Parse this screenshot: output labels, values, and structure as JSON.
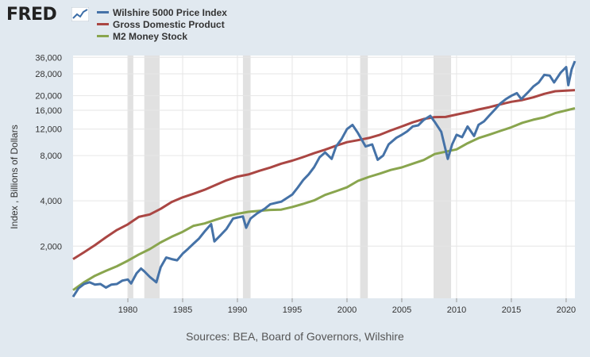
{
  "header": {
    "logo_text": "FRED",
    "logo_icon": "fred-chart-icon"
  },
  "legend": [
    {
      "name": "Wilshire 5000 Price Index",
      "color": "#4572a7"
    },
    {
      "name": "Gross Domestic Product",
      "color": "#aa4643"
    },
    {
      "name": "M2 Money Stock",
      "color": "#89a54e"
    }
  ],
  "footer": {
    "source": "Sources: BEA, Board of Governors, Wilshire"
  },
  "chart_data": {
    "type": "line",
    "ylabel": "Index , Billions of Dollars",
    "yscale": "log",
    "ylim": [
      900,
      37000
    ],
    "xlim": [
      1975,
      2020.8
    ],
    "grid": true,
    "legend_placement": "top-left",
    "x_ticks": [
      1980,
      1985,
      1990,
      1995,
      2000,
      2005,
      2010,
      2015,
      2020
    ],
    "y_ticks": [
      {
        "value": 2000,
        "label": "2,000"
      },
      {
        "value": 4000,
        "label": "4,000"
      },
      {
        "value": 8000,
        "label": "8,000"
      },
      {
        "value": 12000,
        "label": "12,000"
      },
      {
        "value": 16000,
        "label": "16,000"
      },
      {
        "value": 20000,
        "label": "20,000"
      },
      {
        "value": 28000,
        "label": "28,000"
      },
      {
        "value": 36000,
        "label": "36,000"
      }
    ],
    "recessions": [
      [
        1980.0,
        1980.5
      ],
      [
        1981.5,
        1982.9
      ],
      [
        1990.5,
        1991.2
      ],
      [
        2001.2,
        2001.9
      ],
      [
        2007.9,
        2009.5
      ]
    ],
    "series": [
      {
        "name": "Wilshire 5000 Price Index",
        "color": "#4572a7",
        "points": [
          [
            1975.0,
            920
          ],
          [
            1975.5,
            1050
          ],
          [
            1976.0,
            1120
          ],
          [
            1976.5,
            1150
          ],
          [
            1977.0,
            1110
          ],
          [
            1977.5,
            1120
          ],
          [
            1978.0,
            1060
          ],
          [
            1978.5,
            1110
          ],
          [
            1979.0,
            1120
          ],
          [
            1979.5,
            1180
          ],
          [
            1980.0,
            1200
          ],
          [
            1980.3,
            1130
          ],
          [
            1980.8,
            1320
          ],
          [
            1981.2,
            1420
          ],
          [
            1981.5,
            1360
          ],
          [
            1982.0,
            1250
          ],
          [
            1982.6,
            1150
          ],
          [
            1983.0,
            1450
          ],
          [
            1983.5,
            1680
          ],
          [
            1984.0,
            1640
          ],
          [
            1984.5,
            1610
          ],
          [
            1985.0,
            1780
          ],
          [
            1985.5,
            1920
          ],
          [
            1986.0,
            2080
          ],
          [
            1986.5,
            2250
          ],
          [
            1987.0,
            2500
          ],
          [
            1987.6,
            2800
          ],
          [
            1987.9,
            2150
          ],
          [
            1988.5,
            2380
          ],
          [
            1989.0,
            2600
          ],
          [
            1989.6,
            3050
          ],
          [
            1990.0,
            3100
          ],
          [
            1990.5,
            3150
          ],
          [
            1990.8,
            2650
          ],
          [
            1991.2,
            3050
          ],
          [
            1991.8,
            3300
          ],
          [
            1992.5,
            3550
          ],
          [
            1993.0,
            3800
          ],
          [
            1994.0,
            3950
          ],
          [
            1995.0,
            4400
          ],
          [
            1995.5,
            4900
          ],
          [
            1996.0,
            5500
          ],
          [
            1996.5,
            6000
          ],
          [
            1997.0,
            6700
          ],
          [
            1997.5,
            7800
          ],
          [
            1998.0,
            8400
          ],
          [
            1998.6,
            7600
          ],
          [
            1999.0,
            9200
          ],
          [
            1999.5,
            10300
          ],
          [
            2000.0,
            12000
          ],
          [
            2000.5,
            12800
          ],
          [
            2001.0,
            11300
          ],
          [
            2001.7,
            9200
          ],
          [
            2002.3,
            9500
          ],
          [
            2002.8,
            7500
          ],
          [
            2003.3,
            8000
          ],
          [
            2003.8,
            9500
          ],
          [
            2004.5,
            10500
          ],
          [
            2005.0,
            11000
          ],
          [
            2005.5,
            11600
          ],
          [
            2006.0,
            12500
          ],
          [
            2006.5,
            12700
          ],
          [
            2007.0,
            13800
          ],
          [
            2007.6,
            14700
          ],
          [
            2008.0,
            13400
          ],
          [
            2008.6,
            11500
          ],
          [
            2009.2,
            7600
          ],
          [
            2009.6,
            9500
          ],
          [
            2010.0,
            11000
          ],
          [
            2010.5,
            10600
          ],
          [
            2011.0,
            12500
          ],
          [
            2011.6,
            10800
          ],
          [
            2012.0,
            12800
          ],
          [
            2012.5,
            13500
          ],
          [
            2013.0,
            14800
          ],
          [
            2013.5,
            16200
          ],
          [
            2014.0,
            17800
          ],
          [
            2014.5,
            19000
          ],
          [
            2015.0,
            20000
          ],
          [
            2015.5,
            20800
          ],
          [
            2015.9,
            19000
          ],
          [
            2016.5,
            21000
          ],
          [
            2017.0,
            23000
          ],
          [
            2017.5,
            24500
          ],
          [
            2018.0,
            27500
          ],
          [
            2018.5,
            27200
          ],
          [
            2018.9,
            24500
          ],
          [
            2019.5,
            28500
          ],
          [
            2020.0,
            31000
          ],
          [
            2020.2,
            23500
          ],
          [
            2020.5,
            30000
          ],
          [
            2020.8,
            34000
          ]
        ]
      },
      {
        "name": "Gross Domestic Product",
        "color": "#aa4643",
        "points": [
          [
            1975,
            1640
          ],
          [
            1976,
            1820
          ],
          [
            1977,
            2030
          ],
          [
            1978,
            2290
          ],
          [
            1979,
            2560
          ],
          [
            1980,
            2790
          ],
          [
            1981,
            3130
          ],
          [
            1982,
            3250
          ],
          [
            1983,
            3540
          ],
          [
            1984,
            3930
          ],
          [
            1985,
            4220
          ],
          [
            1986,
            4460
          ],
          [
            1987,
            4740
          ],
          [
            1988,
            5100
          ],
          [
            1989,
            5480
          ],
          [
            1990,
            5800
          ],
          [
            1991,
            5990
          ],
          [
            1992,
            6340
          ],
          [
            1993,
            6660
          ],
          [
            1994,
            7070
          ],
          [
            1995,
            7400
          ],
          [
            1996,
            7820
          ],
          [
            1997,
            8300
          ],
          [
            1998,
            8750
          ],
          [
            1999,
            9300
          ],
          [
            2000,
            9820
          ],
          [
            2001,
            10130
          ],
          [
            2002,
            10470
          ],
          [
            2003,
            11000
          ],
          [
            2004,
            11760
          ],
          [
            2005,
            12500
          ],
          [
            2006,
            13300
          ],
          [
            2007,
            14000
          ],
          [
            2008,
            14420
          ],
          [
            2009,
            14450
          ],
          [
            2010,
            14990
          ],
          [
            2011,
            15540
          ],
          [
            2012,
            16200
          ],
          [
            2013,
            16780
          ],
          [
            2014,
            17530
          ],
          [
            2015,
            18220
          ],
          [
            2016,
            18710
          ],
          [
            2017,
            19520
          ],
          [
            2018,
            20580
          ],
          [
            2019,
            21430
          ],
          [
            2020.8,
            21800
          ]
        ]
      },
      {
        "name": "M2 Money Stock",
        "color": "#89a54e",
        "points": [
          [
            1975,
            1020
          ],
          [
            1976,
            1150
          ],
          [
            1977,
            1270
          ],
          [
            1978,
            1370
          ],
          [
            1979,
            1470
          ],
          [
            1980,
            1600
          ],
          [
            1981,
            1760
          ],
          [
            1982,
            1910
          ],
          [
            1983,
            2120
          ],
          [
            1984,
            2310
          ],
          [
            1985,
            2490
          ],
          [
            1986,
            2730
          ],
          [
            1987,
            2830
          ],
          [
            1988,
            2990
          ],
          [
            1989,
            3150
          ],
          [
            1990,
            3280
          ],
          [
            1991,
            3380
          ],
          [
            1992,
            3430
          ],
          [
            1993,
            3480
          ],
          [
            1994,
            3500
          ],
          [
            1995,
            3640
          ],
          [
            1996,
            3820
          ],
          [
            1997,
            4030
          ],
          [
            1998,
            4380
          ],
          [
            1999,
            4640
          ],
          [
            2000,
            4920
          ],
          [
            2001,
            5430
          ],
          [
            2002,
            5770
          ],
          [
            2003,
            6070
          ],
          [
            2004,
            6420
          ],
          [
            2005,
            6680
          ],
          [
            2006,
            7070
          ],
          [
            2007,
            7470
          ],
          [
            2008,
            8190
          ],
          [
            2009,
            8490
          ],
          [
            2010,
            8800
          ],
          [
            2011,
            9660
          ],
          [
            2012,
            10450
          ],
          [
            2013,
            11020
          ],
          [
            2014,
            11670
          ],
          [
            2015,
            12340
          ],
          [
            2016,
            13210
          ],
          [
            2017,
            13850
          ],
          [
            2018,
            14370
          ],
          [
            2019,
            15330
          ],
          [
            2020.8,
            16500
          ]
        ]
      }
    ]
  }
}
